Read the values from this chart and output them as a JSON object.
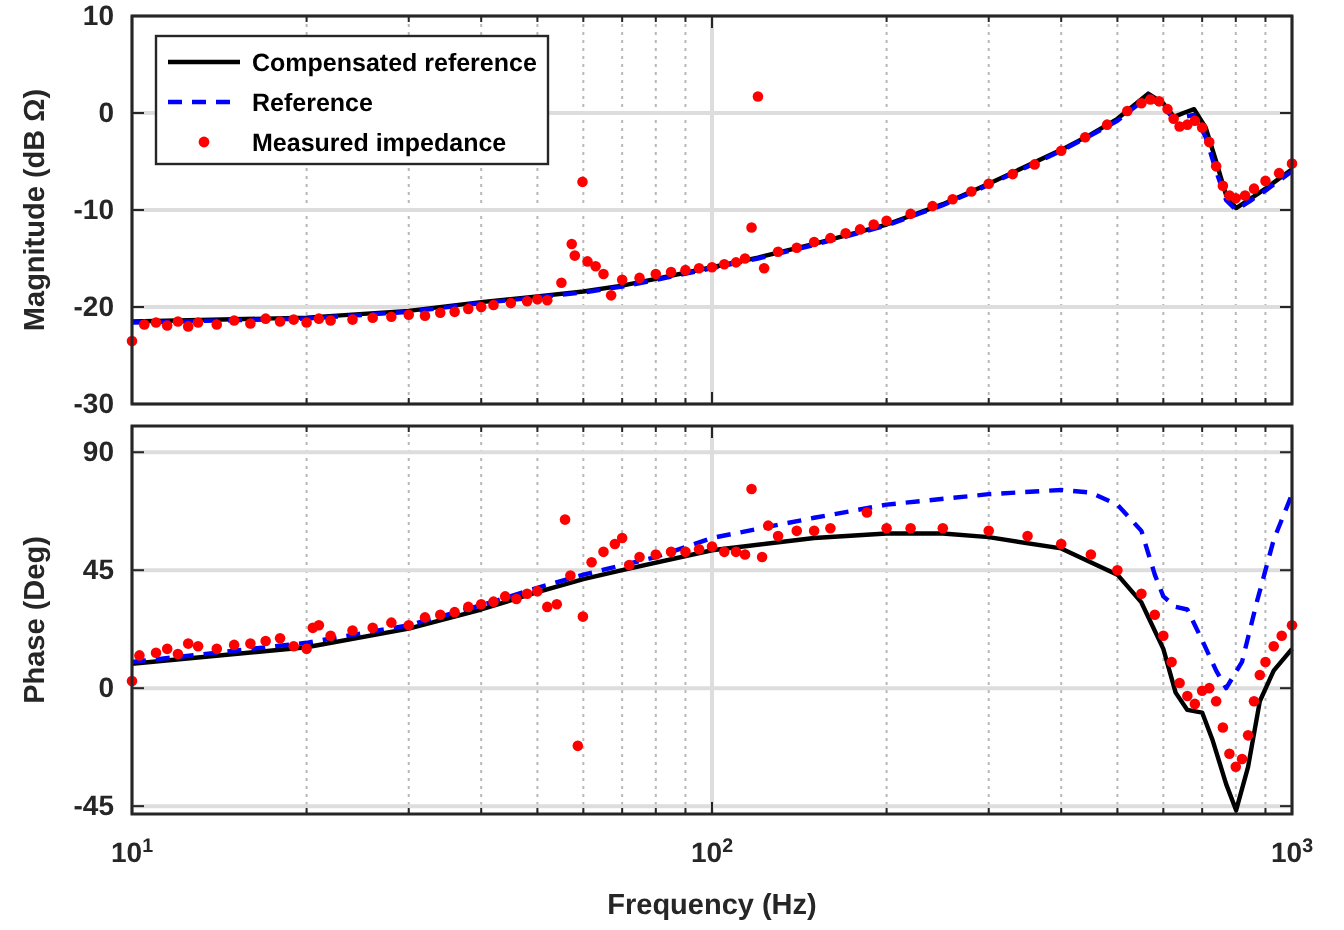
{
  "chart_data": [
    {
      "type": "line",
      "ylabel": "Magnitude (dB Ω)",
      "log": "x",
      "grid": true,
      "legend": "top left",
      "tick_labels": "y",
      "xlim": [
        10,
        1000
      ],
      "ylim": [
        -30,
        10
      ],
      "yticks": [
        -30,
        -20,
        -10,
        0,
        10
      ],
      "xticks": [
        {
          "value": 10,
          "label": null
        },
        {
          "value": 20,
          "label": null
        },
        {
          "value": 30,
          "label": null
        },
        {
          "value": 40,
          "label": null
        },
        {
          "value": 50,
          "label": null
        },
        {
          "value": 60,
          "label": null
        },
        {
          "value": 70,
          "label": null
        },
        {
          "value": 80,
          "label": null
        },
        {
          "value": 90,
          "label": null
        },
        {
          "value": 100,
          "label": null
        },
        {
          "value": 200,
          "label": null
        },
        {
          "value": 300,
          "label": null
        },
        {
          "value": 400,
          "label": null
        },
        {
          "value": 500,
          "label": null
        },
        {
          "value": 600,
          "label": null
        },
        {
          "value": 700,
          "label": null
        },
        {
          "value": 800,
          "label": null
        },
        {
          "value": 900,
          "label": null
        },
        {
          "value": 1000,
          "label": null
        }
      ],
      "series": [
        {
          "name": "Compensated reference",
          "line_style": "solid",
          "color": "#000000",
          "x": [
            10,
            20,
            30,
            40,
            50,
            60,
            70,
            80,
            100,
            120,
            150,
            200,
            250,
            300,
            400,
            450,
            500,
            565,
            600,
            626,
            650,
            678,
            710,
            740,
            770,
            801,
            850,
            900,
            1000
          ],
          "values": [
            -21.5,
            -21.1,
            -20.4,
            -19.5,
            -18.9,
            -18.4,
            -17.8,
            -17.1,
            -15.9,
            -14.9,
            -13.5,
            -11.5,
            -9.4,
            -7.3,
            -3.8,
            -2.2,
            -0.6,
            2.0,
            1.0,
            -0.4,
            0.0,
            0.4,
            -1.5,
            -5,
            -8.5,
            -9.8,
            -8.8,
            -7.8,
            -5.8
          ]
        },
        {
          "name": "Reference",
          "line_style": "dashed",
          "color": "#0000ff",
          "x": [
            10,
            20,
            30,
            40,
            50,
            60,
            70,
            80,
            100,
            120,
            150,
            200,
            250,
            300,
            400,
            450,
            500,
            565,
            600,
            626,
            650,
            678,
            710,
            740,
            770,
            801,
            850,
            900,
            1000
          ],
          "values": [
            -21.6,
            -21.2,
            -20.5,
            -19.6,
            -19.0,
            -18.5,
            -17.9,
            -17.2,
            -16.0,
            -15.0,
            -13.6,
            -11.6,
            -9.5,
            -7.4,
            -3.9,
            -2.3,
            -0.8,
            1.7,
            0.6,
            -0.6,
            -0.4,
            -0.2,
            -2.5,
            -6,
            -9,
            -10.0,
            -9.0,
            -8.0,
            -6.0
          ]
        },
        {
          "name": "Measured impedance",
          "type": "scatter",
          "marker": "circle",
          "color": "#ff0000",
          "x": [
            10,
            10.5,
            11,
            11.5,
            12,
            12.5,
            13,
            14,
            15,
            16,
            17,
            18,
            19,
            20,
            21,
            22,
            24,
            26,
            28,
            30,
            32,
            34,
            36,
            38,
            40,
            42,
            45,
            48,
            50,
            52,
            55,
            57.3,
            58,
            59.8,
            61,
            63,
            65,
            67,
            70,
            75,
            80,
            85,
            90,
            95,
            100,
            105,
            110,
            114,
            117,
            120,
            123,
            130,
            140,
            150,
            160,
            170,
            180,
            190,
            200,
            220,
            240,
            260,
            280,
            300,
            330,
            360,
            400,
            440,
            480,
            520,
            550,
            570,
            590,
            610,
            625,
            640,
            660,
            680,
            700,
            720,
            740,
            760,
            780,
            800,
            830,
            860,
            900,
            950,
            1000
          ],
          "values": [
            -23.5,
            -21.8,
            -21.6,
            -21.9,
            -21.5,
            -22.0,
            -21.6,
            -21.8,
            -21.4,
            -21.7,
            -21.2,
            -21.5,
            -21.3,
            -21.6,
            -21.2,
            -21.4,
            -21.3,
            -21.1,
            -21.0,
            -20.8,
            -20.9,
            -20.6,
            -20.5,
            -20.2,
            -20.0,
            -19.8,
            -19.6,
            -19.4,
            -19.2,
            -19.3,
            -17.5,
            -13.5,
            -14.7,
            -7.1,
            -15.3,
            -15.8,
            -16.6,
            -18.8,
            -17.2,
            -17.0,
            -16.6,
            -16.4,
            -16.2,
            -16.0,
            -15.9,
            -15.6,
            -15.4,
            -15.0,
            -11.8,
            1.7,
            -16.0,
            -14.3,
            -13.9,
            -13.3,
            -12.9,
            -12.4,
            -12.0,
            -11.5,
            -11.1,
            -10.4,
            -9.6,
            -8.9,
            -8.1,
            -7.3,
            -6.3,
            -5.3,
            -3.9,
            -2.5,
            -1.2,
            0.2,
            1.0,
            1.4,
            1.2,
            0.4,
            -0.6,
            -1.4,
            -1.2,
            -0.8,
            -1.5,
            -3.0,
            -5.5,
            -7.5,
            -8.5,
            -8.8,
            -8.5,
            -7.8,
            -7.0,
            -6.2,
            -5.2
          ]
        }
      ]
    },
    {
      "type": "line",
      "xlabel": "Frequency (Hz)",
      "ylabel": "Phase (Deg)",
      "log": "x",
      "grid": true,
      "xlim": [
        10,
        1000
      ],
      "ylim": [
        -48,
        100
      ],
      "yticks": [
        -45,
        0,
        45,
        90
      ],
      "xticks": [
        {
          "value": 10,
          "label": "10$^{1}$"
        },
        {
          "value": 20,
          "label": null
        },
        {
          "value": 30,
          "label": null
        },
        {
          "value": 40,
          "label": null
        },
        {
          "value": 50,
          "label": null
        },
        {
          "value": 60,
          "label": null
        },
        {
          "value": 70,
          "label": null
        },
        {
          "value": 80,
          "label": null
        },
        {
          "value": 90,
          "label": null
        },
        {
          "value": 100,
          "label": "10$^{2}$"
        },
        {
          "value": 200,
          "label": null
        },
        {
          "value": 300,
          "label": null
        },
        {
          "value": 400,
          "label": null
        },
        {
          "value": 500,
          "label": null
        },
        {
          "value": 600,
          "label": null
        },
        {
          "value": 700,
          "label": null
        },
        {
          "value": 800,
          "label": null
        },
        {
          "value": 900,
          "label": null
        },
        {
          "value": 1000,
          "label": "10$^{3}$"
        }
      ],
      "series": [
        {
          "line_style": "solid",
          "color": "#000000",
          "x": [
            10,
            20,
            30,
            40,
            50,
            60,
            70,
            100,
            150,
            200,
            250,
            300,
            400,
            500,
            550,
            600,
            630,
            660,
            700,
            730,
            770,
            801,
            840,
            880,
            930,
            1000
          ],
          "values": [
            9.3,
            15.6,
            22.7,
            30,
            36.6,
            41.6,
            45,
            52.6,
            57.3,
            59,
            59,
            57.6,
            53.3,
            43.3,
            32.7,
            15,
            -1.7,
            -8.3,
            -9.3,
            -20,
            -36.6,
            -46.6,
            -30,
            -5,
            6.7,
            15
          ]
        },
        {
          "line_style": "dashed",
          "color": "#0000ff",
          "x": [
            10,
            20,
            30,
            40,
            50,
            60,
            80,
            100,
            150,
            200,
            300,
            400,
            450,
            500,
            550,
            580,
            600,
            630,
            660,
            700,
            740,
            770,
            820,
            870,
            930,
            1000
          ],
          "values": [
            10,
            17.3,
            24,
            31.6,
            38.3,
            43.3,
            50,
            57.3,
            65,
            70,
            74,
            75.6,
            74.6,
            70,
            60,
            43.3,
            35,
            31,
            30,
            18.3,
            6.7,
            0,
            10,
            33,
            56.6,
            74
          ]
        },
        {
          "type": "scatter",
          "marker": "circle",
          "color": "#ff0000",
          "x": [
            10,
            10.3,
            11,
            11.5,
            12,
            12.5,
            13,
            14,
            15,
            16,
            17,
            18,
            19,
            20,
            20.5,
            21,
            22,
            24,
            26,
            28,
            30,
            32,
            34,
            36,
            38,
            40,
            42,
            44,
            46,
            48,
            50,
            52,
            54,
            55.8,
            57,
            58.7,
            59.9,
            62,
            65,
            68,
            70,
            72,
            75,
            80,
            85,
            90,
            95,
            100,
            105,
            110,
            114,
            117,
            122,
            125,
            130,
            140,
            150,
            160,
            185,
            200,
            220,
            250,
            300,
            350,
            400,
            450,
            500,
            550,
            580,
            600,
            620,
            640,
            660,
            680,
            700,
            720,
            740,
            760,
            780,
            800,
            820,
            840,
            860,
            880,
            900,
            930,
            960,
            1000
          ],
          "values": [
            2.7,
            12.5,
            13.5,
            15,
            13,
            17,
            16,
            15,
            16.5,
            17,
            18,
            19,
            16,
            15,
            23,
            24,
            20,
            22,
            23,
            25,
            24,
            27,
            28,
            29,
            31,
            32,
            33,
            35,
            34,
            36,
            37,
            31,
            32,
            64.3,
            43,
            -22,
            27.3,
            48,
            52,
            55,
            57.3,
            47,
            50,
            51,
            52,
            52,
            53,
            54,
            52,
            52,
            51,
            76,
            50,
            62,
            58,
            60,
            60,
            61,
            67,
            61,
            61,
            61,
            60,
            58,
            55,
            51,
            45,
            36,
            28,
            20,
            10,
            2,
            -3,
            -6,
            -1,
            0,
            -5,
            -15,
            -25,
            -30,
            -27,
            -18,
            -5,
            5,
            10,
            16,
            20,
            24
          ]
        }
      ]
    }
  ]
}
